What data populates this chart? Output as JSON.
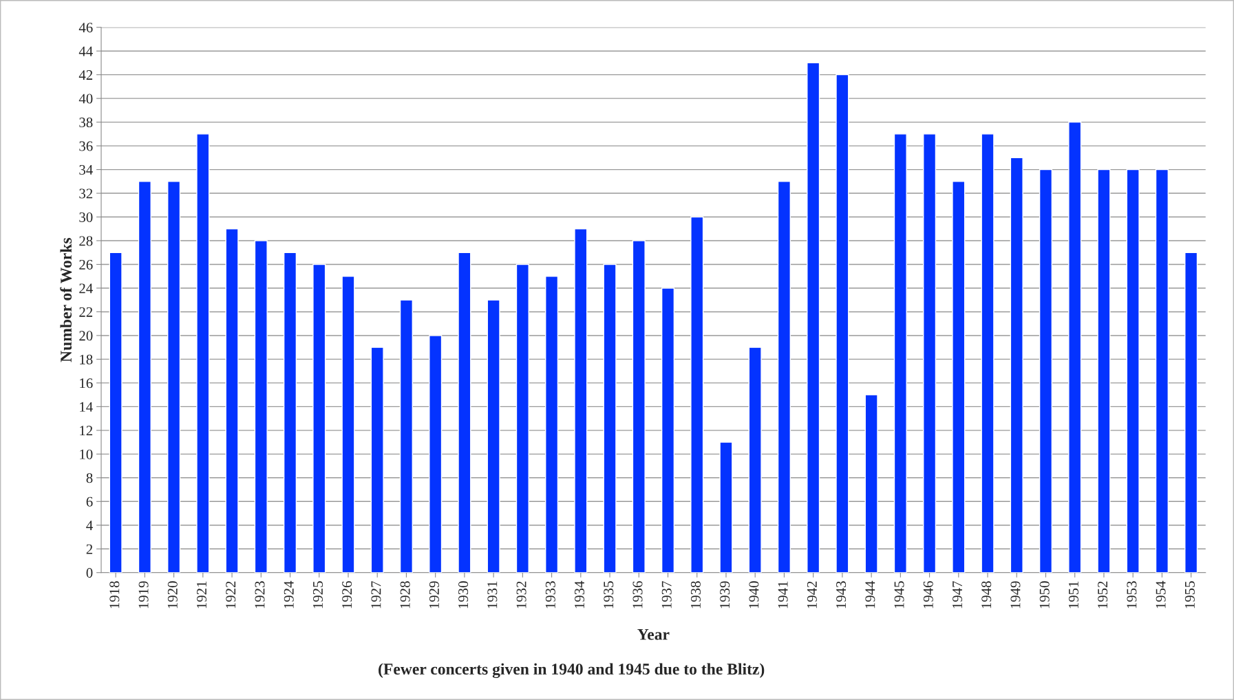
{
  "chart_data": {
    "type": "bar",
    "xlabel": "Year",
    "ylabel": "Number of Works",
    "annotations": [
      "(Fewer concerts given in 1940 and 1945 due to the Blitz)"
    ],
    "categories": [
      "1918",
      "1919",
      "1920",
      "1921",
      "1922",
      "1923",
      "1924",
      "1925",
      "1926",
      "1927",
      "1928",
      "1929",
      "1930",
      "1931",
      "1932",
      "1933",
      "1934",
      "1935",
      "1936",
      "1937",
      "1938",
      "1939",
      "1940",
      "1941",
      "1942",
      "1943",
      "1944",
      "1945",
      "1946",
      "1947",
      "1948",
      "1949",
      "1950",
      "1951",
      "1952",
      "1953",
      "1954",
      "1955"
    ],
    "values": [
      27,
      33,
      33,
      37,
      29,
      28,
      27,
      26,
      25,
      19,
      23,
      20,
      27,
      23,
      26,
      25,
      29,
      26,
      28,
      24,
      30,
      11,
      19,
      33,
      43,
      42,
      15,
      37,
      37,
      33,
      37,
      35,
      34,
      38,
      34,
      34,
      34,
      27
    ],
    "color": "#0433ff",
    "ylim": [
      0,
      46
    ],
    "yticks": [
      0,
      2,
      4,
      6,
      8,
      10,
      12,
      14,
      16,
      18,
      20,
      22,
      24,
      26,
      28,
      30,
      32,
      34,
      36,
      38,
      40,
      42,
      44,
      46
    ],
    "grid": "y",
    "legend": false
  }
}
